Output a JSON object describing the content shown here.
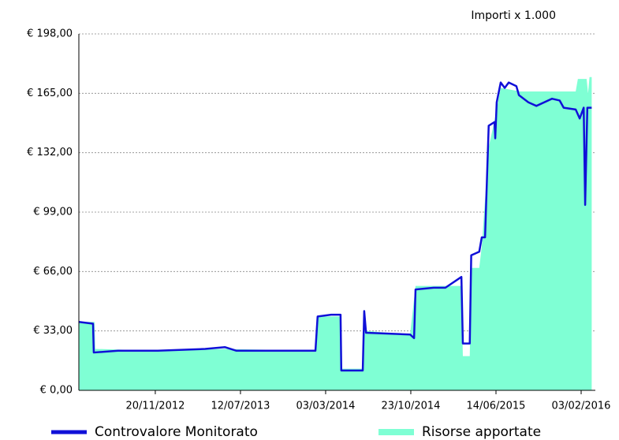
{
  "chart_data": {
    "type": "line",
    "title": "Importi x 1.000",
    "xlim": [
      "24/04/2012",
      "13/03/2016"
    ],
    "xticks": [
      "20/11/2012",
      "12/07/2013",
      "03/03/2014",
      "23/10/2014",
      "14/06/2015",
      "03/02/2016"
    ],
    "ylim": [
      0,
      198
    ],
    "yticks": [
      {
        "value": 0,
        "label": "€ 0,00"
      },
      {
        "value": 33,
        "label": "€ 33,00"
      },
      {
        "value": 66,
        "label": "€ 66,00"
      },
      {
        "value": 99,
        "label": "€ 99,00"
      },
      {
        "value": 132,
        "label": "€ 132,00"
      },
      {
        "value": 165,
        "label": "€ 165,00"
      },
      {
        "value": 198,
        "label": "€ 198,00"
      }
    ],
    "grid": true,
    "legend": "bottom",
    "series": [
      {
        "name": "Risorse apportate",
        "kind": "area",
        "color": "#7fffd4",
        "x": [
          "24/04/2012",
          "06/06/2012",
          "08/06/2012",
          "27/11/2012",
          "30/05/2013",
          "03/02/2014",
          "09/02/2014",
          "13/04/2014",
          "15/04/2014",
          "13/06/2014",
          "17/06/2014",
          "22/06/2014",
          "21/10/2014",
          "05/11/2014",
          "11/03/2015",
          "15/03/2015",
          "03/04/2015",
          "07/04/2015",
          "29/04/2015",
          "06/05/2015",
          "25/05/2015",
          "10/06/2015",
          "27/06/2015",
          "20/08/2015",
          "19/01/2016",
          "25/01/2016",
          "18/02/2016",
          "22/02/2016",
          "26/02/2016",
          "03/03/2016"
        ],
        "values": [
          38,
          38,
          23,
          22,
          23,
          22,
          41,
          41,
          12,
          12,
          35,
          33,
          31,
          58,
          58,
          19,
          19,
          68,
          68,
          80,
          135,
          150,
          168,
          166,
          166,
          173,
          173,
          165,
          174,
          174
        ]
      },
      {
        "name": "Controvalore Monitorato",
        "kind": "line",
        "color": "#1010d8",
        "x": [
          "24/04/2012",
          "02/06/2012",
          "04/06/2012",
          "10/08/2012",
          "27/11/2012",
          "06/04/2013",
          "30/05/2013",
          "01/07/2013",
          "26/09/2013",
          "03/02/2014",
          "09/02/2014",
          "18/03/2014",
          "13/04/2014",
          "15/04/2014",
          "13/06/2014",
          "17/06/2014",
          "22/06/2014",
          "21/10/2014",
          "01/11/2014",
          "05/11/2014",
          "25/12/2014",
          "26/01/2015",
          "11/03/2015",
          "15/03/2015",
          "03/04/2015",
          "07/04/2015",
          "29/04/2015",
          "06/05/2015",
          "15/05/2015",
          "25/05/2015",
          "10/06/2015",
          "12/06/2015",
          "16/06/2015",
          "27/06/2015",
          "08/07/2015",
          "19/07/2015",
          "09/08/2015",
          "16/08/2015",
          "11/09/2015",
          "03/10/2015",
          "15/11/2015",
          "06/12/2015",
          "17/12/2015",
          "19/01/2016",
          "30/01/2016",
          "10/02/2016",
          "14/02/2016",
          "20/02/2016",
          "03/03/2016"
        ],
        "values": [
          38,
          37,
          21,
          22,
          22,
          23,
          24,
          22,
          22,
          22,
          41,
          42,
          42,
          11,
          11,
          44,
          32,
          31,
          29,
          56,
          57,
          57,
          63,
          26,
          26,
          75,
          77,
          85,
          85,
          147,
          149,
          140,
          160,
          171,
          168,
          171,
          169,
          164,
          160,
          158,
          162,
          161,
          157,
          156,
          151,
          157,
          103,
          157,
          157
        ]
      }
    ]
  }
}
